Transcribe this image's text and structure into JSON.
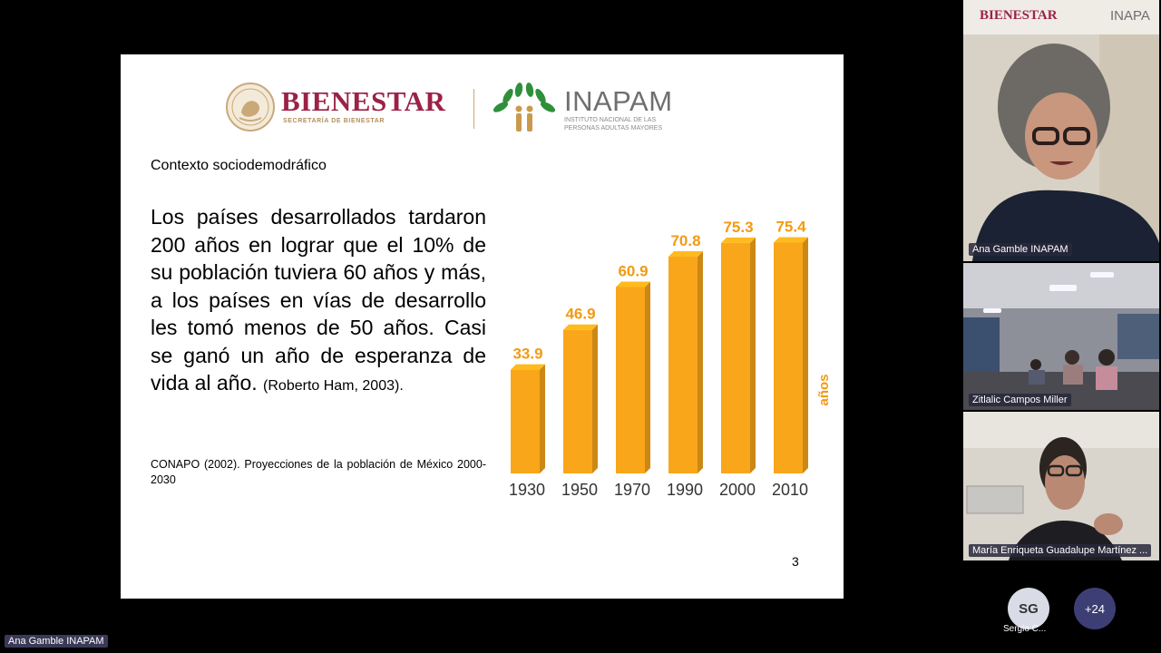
{
  "slide": {
    "logos": {
      "bienestar_title": "BIENESTAR",
      "bienestar_subtitle": "SECRETARÍA DE BIENESTAR",
      "inapam_title": "INAPAM",
      "inapam_subtitle_1": "INSTITUTO NACIONAL DE LAS",
      "inapam_subtitle_2": "PERSONAS ADULTAS MAYORES"
    },
    "context_heading": "Contexto sociodemodráfico",
    "paragraph": "Los países desarrollados tardaron 200 años en lograr que el 10% de su población tuviera 60 años y más, a los países en vías de desarrollo les tomó menos de 50 años. Casi se ganó un año de esperanza de vida al año.",
    "citation": "(Roberto Ham, 2003).",
    "source": "CONAPO (2002). Proyecciones de la población de México 2000-2030",
    "page_number": "3"
  },
  "chart_data": {
    "type": "bar",
    "categories": [
      "1930",
      "1950",
      "1970",
      "1990",
      "2000",
      "2010"
    ],
    "values": [
      33.9,
      46.9,
      60.9,
      70.8,
      75.3,
      75.4
    ],
    "title": "",
    "xlabel": "",
    "ylabel": "años",
    "ylim": [
      0,
      80
    ],
    "grid": false,
    "bar_color": "#f9a61a",
    "label_color": "#f39a12"
  },
  "participants": [
    {
      "name": "Ana Gamble INAPAM",
      "header_left": "BIENESTAR",
      "header_right": "INAPA"
    },
    {
      "name": "Zitlalic Campos Miller"
    },
    {
      "name": "María Enriqueta Guadalupe Martínez ..."
    }
  ],
  "overflow": {
    "initials": "SG",
    "name": "Sergio C...",
    "more_count": "+24"
  },
  "presenter_label": "Ana Gamble INAPAM",
  "colors": {
    "bienestar": "#9b2247",
    "gold": "#b38e5d",
    "inapam_green": "#2f8f3a",
    "inapam_gray": "#6f6f6f"
  }
}
